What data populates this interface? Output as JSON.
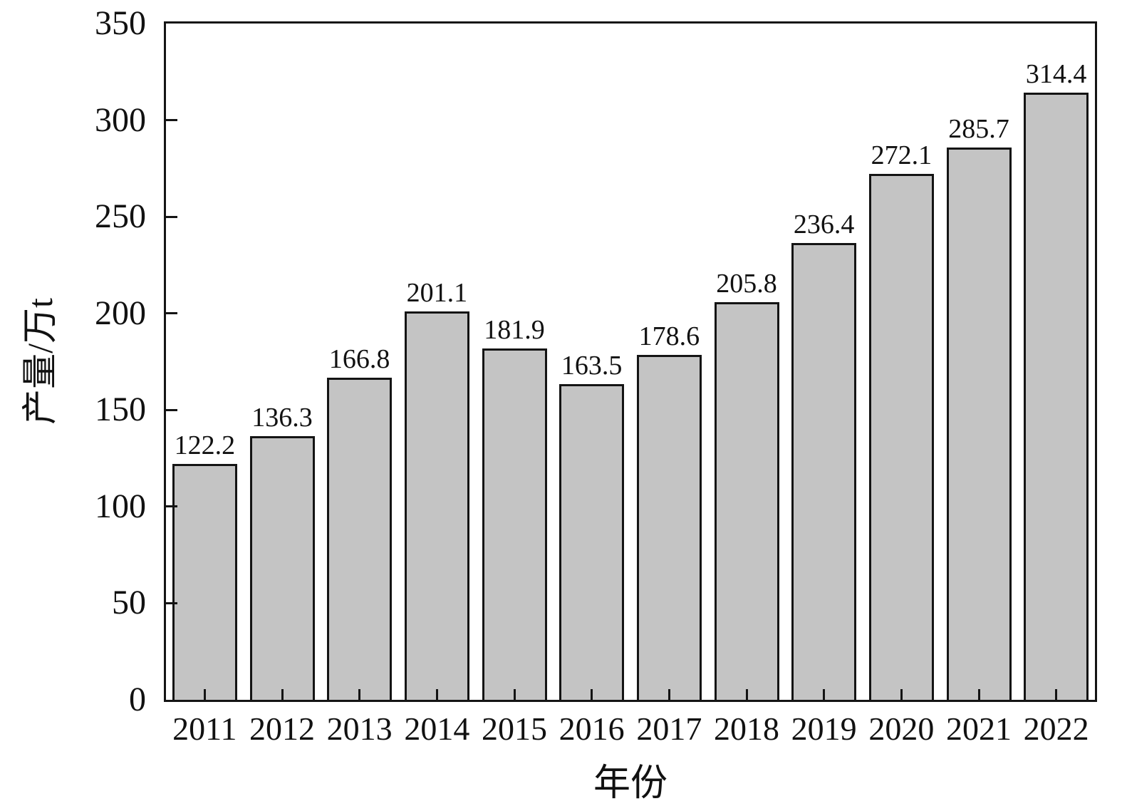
{
  "chart_data": {
    "type": "bar",
    "categories": [
      "2011",
      "2012",
      "2013",
      "2014",
      "2015",
      "2016",
      "2017",
      "2018",
      "2019",
      "2020",
      "2021",
      "2022"
    ],
    "values": [
      122.2,
      136.3,
      166.8,
      201.1,
      181.9,
      163.5,
      178.6,
      205.8,
      236.4,
      272.1,
      285.7,
      314.4
    ],
    "title": "",
    "xlabel": "年份",
    "ylabel": "产量/万t",
    "ylim": [
      0,
      350
    ],
    "ytick_step": 50,
    "grid": false,
    "legend": false,
    "bar_color": "#c4c4c4",
    "bar_border_color": "#141414",
    "axis_color": "#141414",
    "text_color": "#111111"
  }
}
